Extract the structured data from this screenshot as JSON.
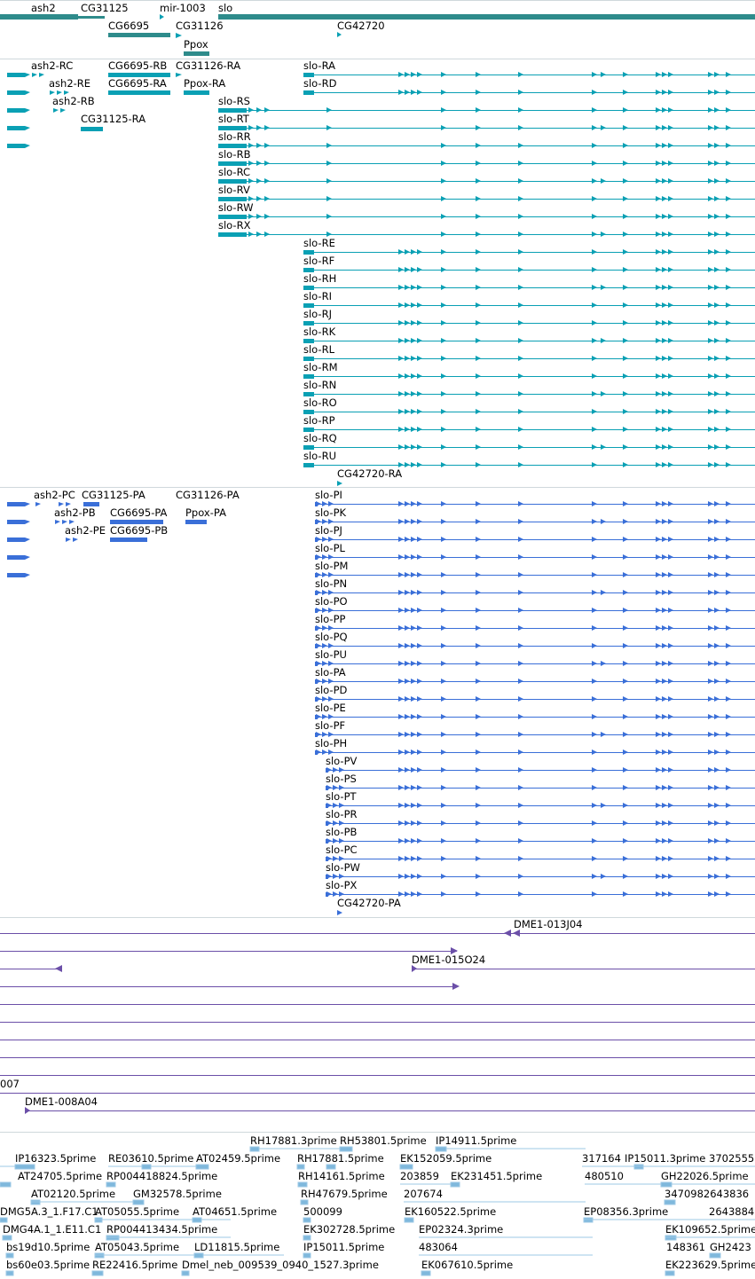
{
  "colors": {
    "gene": "#2e8b8b",
    "transcript": "#0aa0b4",
    "protein": "#3a6fd8",
    "clone": "#6b4fa8",
    "est": "#7fb8dc",
    "separator": "#cfd8dc"
  },
  "genes": [
    {
      "label": "ash2"
    },
    {
      "label": "CG31125"
    },
    {
      "label": "mir-1003"
    },
    {
      "label": "slo"
    },
    {
      "label": "CG6695"
    },
    {
      "label": "CG31126"
    },
    {
      "label": "CG42720"
    },
    {
      "label": "Ppox"
    }
  ],
  "transcripts_left": [
    {
      "label": "ash2-RC"
    },
    {
      "label": "CG6695-RB"
    },
    {
      "label": "CG31126-RA"
    },
    {
      "label": "ash2-RE"
    },
    {
      "label": "CG6695-RA"
    },
    {
      "label": "Ppox-RA"
    },
    {
      "label": "ash2-RB"
    },
    {
      "label": "CG31125-RA"
    }
  ],
  "slo_transcripts": [
    {
      "label": "slo-RA"
    },
    {
      "label": "slo-RD"
    },
    {
      "label": "slo-RS"
    },
    {
      "label": "slo-RT"
    },
    {
      "label": "slo-RR"
    },
    {
      "label": "slo-RB"
    },
    {
      "label": "slo-RC"
    },
    {
      "label": "slo-RV"
    },
    {
      "label": "slo-RW"
    },
    {
      "label": "slo-RX"
    },
    {
      "label": "slo-RE"
    },
    {
      "label": "slo-RF"
    },
    {
      "label": "slo-RH"
    },
    {
      "label": "slo-RI"
    },
    {
      "label": "slo-RJ"
    },
    {
      "label": "slo-RK"
    },
    {
      "label": "slo-RL"
    },
    {
      "label": "slo-RM"
    },
    {
      "label": "slo-RN"
    },
    {
      "label": "slo-RO"
    },
    {
      "label": "slo-RP"
    },
    {
      "label": "slo-RQ"
    },
    {
      "label": "slo-RU"
    }
  ],
  "cg42720_transcript": {
    "label": "CG42720-RA"
  },
  "proteins_left": [
    {
      "label": "ash2-PC"
    },
    {
      "label": "CG31125-PA"
    },
    {
      "label": "CG31126-PA"
    },
    {
      "label": "ash2-PB"
    },
    {
      "label": "CG6695-PA"
    },
    {
      "label": "Ppox-PA"
    },
    {
      "label": "ash2-PE"
    },
    {
      "label": "CG6695-PB"
    }
  ],
  "slo_proteins": [
    {
      "label": "slo-PI"
    },
    {
      "label": "slo-PK"
    },
    {
      "label": "slo-PJ"
    },
    {
      "label": "slo-PL"
    },
    {
      "label": "slo-PM"
    },
    {
      "label": "slo-PN"
    },
    {
      "label": "slo-PO"
    },
    {
      "label": "slo-PP"
    },
    {
      "label": "slo-PQ"
    },
    {
      "label": "slo-PU"
    },
    {
      "label": "slo-PA"
    },
    {
      "label": "slo-PD"
    },
    {
      "label": "slo-PE"
    },
    {
      "label": "slo-PF"
    },
    {
      "label": "slo-PH"
    },
    {
      "label": "slo-PV"
    },
    {
      "label": "slo-PS"
    },
    {
      "label": "slo-PT"
    },
    {
      "label": "slo-PR"
    },
    {
      "label": "slo-PB"
    },
    {
      "label": "slo-PC"
    },
    {
      "label": "slo-PW"
    },
    {
      "label": "slo-PX"
    }
  ],
  "cg42720_protein": {
    "label": "CG42720-PA"
  },
  "clones": [
    {
      "label": "DME1-013J04"
    },
    {
      "label": "DME1-015O24"
    },
    {
      "label": "007"
    },
    {
      "label": "DME1-008A04"
    }
  ],
  "ests": [
    {
      "label": "RH17881.3prime"
    },
    {
      "label": "RH53801.5prime"
    },
    {
      "label": "IP14911.5prime"
    },
    {
      "label": "IP16323.5prime"
    },
    {
      "label": "RE03610.5prime"
    },
    {
      "label": "AT02459.5prime"
    },
    {
      "label": "RH17881.5prime"
    },
    {
      "label": "EK152059.5prime"
    },
    {
      "label": "317164"
    },
    {
      "label": "IP15011.3prime"
    },
    {
      "label": "3702555"
    },
    {
      "label": "AT24705.5prime"
    },
    {
      "label": "RP004418824.5prime"
    },
    {
      "label": "RH14161.5prime"
    },
    {
      "label": "203859"
    },
    {
      "label": "EK231451.5prime"
    },
    {
      "label": "480510"
    },
    {
      "label": "GH22026.5prime"
    },
    {
      "label": "AT02120.5prime"
    },
    {
      "label": "GM32578.5prime"
    },
    {
      "label": "RH47679.5prime"
    },
    {
      "label": "207674"
    },
    {
      "label": "3470982643836"
    },
    {
      "label": "DMG5A.3_1.F17.C1"
    },
    {
      "label": "AT05055.5prime"
    },
    {
      "label": "AT04651.5prime"
    },
    {
      "label": "500099"
    },
    {
      "label": "EK160522.5prime"
    },
    {
      "label": "EP08356.3prime"
    },
    {
      "label": "2643884"
    },
    {
      "label": "DMG4A.1_1.E11.C1"
    },
    {
      "label": "RP004413434.5prime"
    },
    {
      "label": "EK302728.5prime"
    },
    {
      "label": "EP02324.3prime"
    },
    {
      "label": "EK109652.5prime"
    },
    {
      "label": "bs19d10.5prime"
    },
    {
      "label": "AT05043.5prime"
    },
    {
      "label": "LD11815.5prime"
    },
    {
      "label": "IP15011.5prime"
    },
    {
      "label": "483064"
    },
    {
      "label": "148361"
    },
    {
      "label": "GH2423"
    },
    {
      "label": "bs60e03.5prime"
    },
    {
      "label": "RE22416.5prime"
    },
    {
      "label": "Dmel_neb_009539_0940_1527.3prime"
    },
    {
      "label": "EK067610.5prime"
    },
    {
      "label": "EK223629.5prime"
    }
  ]
}
